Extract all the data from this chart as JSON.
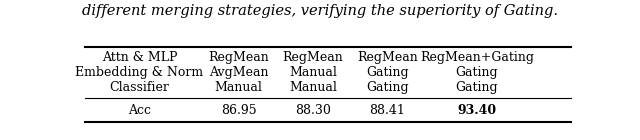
{
  "caption_text": "different merging strategies, verifying the superiority of Gating.",
  "col_headers": [
    [
      "Attn & MLP",
      "Embedding & Norm",
      "Classifier"
    ],
    [
      "RegMean",
      "AvgMean",
      "Manual"
    ],
    [
      "RegMean",
      "Manual",
      "Manual"
    ],
    [
      "RegMean",
      "Gating",
      "Gating"
    ],
    [
      "RegMean+Gating",
      "Gating",
      "Gating"
    ]
  ],
  "row_labels": [
    "Acc"
  ],
  "row_values": [
    [
      "86.95",
      "88.30",
      "88.41",
      "93.40"
    ]
  ],
  "bold_cells": [
    [
      0,
      3
    ]
  ],
  "background_color": "#ffffff",
  "text_color": "#000000",
  "fontsize": 9,
  "caption_fontsize": 10.5
}
